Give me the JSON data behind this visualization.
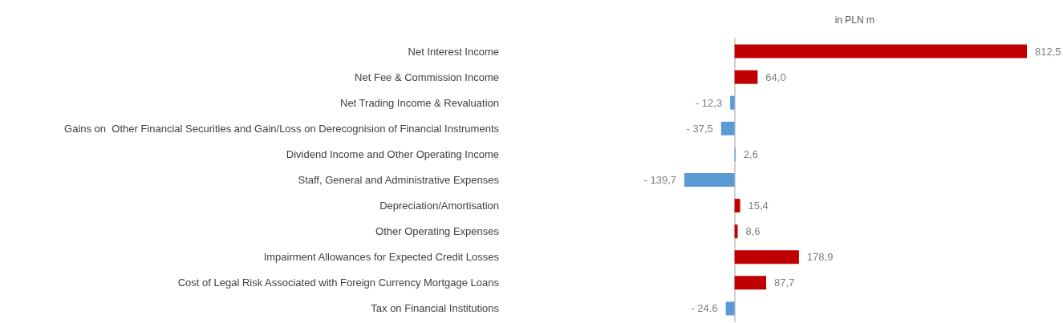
{
  "chart_data": {
    "type": "bar",
    "orientation": "horizontal",
    "subtitle": "in PLN m",
    "categories": [
      "Net Interest Income",
      "Net Fee & Commission Income",
      "Net Trading Income & Revaluation",
      "Gains on  Other Financial Securities and Gain/Loss on Derecognision of Financial Instruments",
      "Dividend Income and Other Operating Income",
      "Staff, General and Administrative Expenses",
      "Depreciation/Amortisation",
      "Other Operating Expenses",
      "Impairment Allowances for Expected Credit Losses",
      "Cost of Legal Risk Associated with Foreign Currency Mortgage Loans",
      "Tax on Financial Institutions"
    ],
    "values": [
      812.5,
      64.0,
      -12.3,
      -37.5,
      2.6,
      -139.7,
      15.4,
      8.6,
      178.9,
      87.7,
      -24.6
    ],
    "value_labels": [
      "812,5",
      "64,0",
      "- 12,3",
      "- 37,5",
      "2,6",
      "- 139,7",
      "15,4",
      "8,6",
      "178,9",
      "87,7",
      "- 24.6"
    ],
    "colors": [
      "#c00000",
      "#c00000",
      "#5b9bd5",
      "#5b9bd5",
      "#5b9bd5",
      "#5b9bd5",
      "#c00000",
      "#c00000",
      "#c00000",
      "#c00000",
      "#5b9bd5"
    ],
    "tick_labels": "y"
  }
}
